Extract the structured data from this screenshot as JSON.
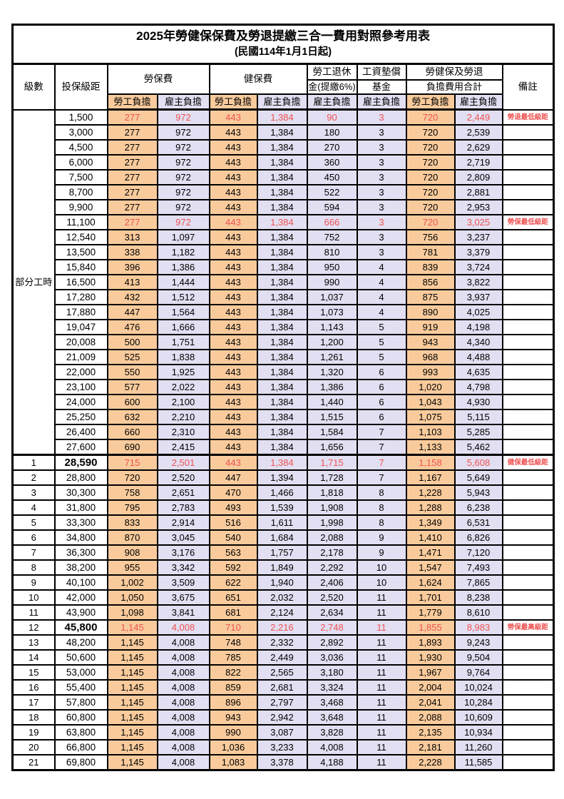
{
  "title": "2025年勞健保保費及勞退提繳三合一費用對照參考用表",
  "subtitle": "(民國114年1月1日起)",
  "header": {
    "level": "級數",
    "bracket": "投保級距",
    "labor": "勞保費",
    "health": "健保費",
    "pension_l1": "勞工退休",
    "pension_l2": "金(提繳6%)",
    "wage_l1": "工資墊償",
    "wage_l2": "基金",
    "total_l1": "勞健保及勞退",
    "total_l2": "負擔費用合計",
    "remark": "備註",
    "employee": "勞工負擔",
    "employer": "雇主負擔"
  },
  "part_time": {
    "label": "部分工時",
    "rowspan": 23
  },
  "colors": {
    "employee_bg": "#F9CB9C",
    "employer_bg": "#E2DFF2",
    "highlight_red": "#EE5353",
    "border": "#000000"
  },
  "rows": [
    {
      "level": "",
      "bracket": "1,500",
      "fees": [
        "277",
        "972",
        "443",
        "1,384",
        "90",
        "3",
        "720",
        "2,449"
      ],
      "remark": "勞退最低級距",
      "highlight": true
    },
    {
      "level": "",
      "bracket": "3,000",
      "fees": [
        "277",
        "972",
        "443",
        "1,384",
        "180",
        "3",
        "720",
        "2,539"
      ]
    },
    {
      "level": "",
      "bracket": "4,500",
      "fees": [
        "277",
        "972",
        "443",
        "1,384",
        "270",
        "3",
        "720",
        "2,629"
      ]
    },
    {
      "level": "",
      "bracket": "6,000",
      "fees": [
        "277",
        "972",
        "443",
        "1,384",
        "360",
        "3",
        "720",
        "2,719"
      ]
    },
    {
      "level": "",
      "bracket": "7,500",
      "fees": [
        "277",
        "972",
        "443",
        "1,384",
        "450",
        "3",
        "720",
        "2,809"
      ]
    },
    {
      "level": "",
      "bracket": "8,700",
      "fees": [
        "277",
        "972",
        "443",
        "1,384",
        "522",
        "3",
        "720",
        "2,881"
      ]
    },
    {
      "level": "",
      "bracket": "9,900",
      "fees": [
        "277",
        "972",
        "443",
        "1,384",
        "594",
        "3",
        "720",
        "2,953"
      ]
    },
    {
      "level": "",
      "bracket": "11,100",
      "fees": [
        "277",
        "972",
        "443",
        "1,384",
        "666",
        "3",
        "720",
        "3,025"
      ],
      "remark": "勞保最低級距",
      "highlight": true
    },
    {
      "level": "",
      "bracket": "12,540",
      "fees": [
        "313",
        "1,097",
        "443",
        "1,384",
        "752",
        "3",
        "756",
        "3,237"
      ]
    },
    {
      "level": "",
      "bracket": "13,500",
      "fees": [
        "338",
        "1,182",
        "443",
        "1,384",
        "810",
        "3",
        "781",
        "3,379"
      ]
    },
    {
      "level": "",
      "bracket": "15,840",
      "fees": [
        "396",
        "1,386",
        "443",
        "1,384",
        "950",
        "4",
        "839",
        "3,724"
      ]
    },
    {
      "level": "",
      "bracket": "16,500",
      "fees": [
        "413",
        "1,444",
        "443",
        "1,384",
        "990",
        "4",
        "856",
        "3,822"
      ]
    },
    {
      "level": "",
      "bracket": "17,280",
      "fees": [
        "432",
        "1,512",
        "443",
        "1,384",
        "1,037",
        "4",
        "875",
        "3,937"
      ]
    },
    {
      "level": "",
      "bracket": "17,880",
      "fees": [
        "447",
        "1,564",
        "443",
        "1,384",
        "1,073",
        "4",
        "890",
        "4,025"
      ]
    },
    {
      "level": "",
      "bracket": "19,047",
      "fees": [
        "476",
        "1,666",
        "443",
        "1,384",
        "1,143",
        "5",
        "919",
        "4,198"
      ]
    },
    {
      "level": "",
      "bracket": "20,008",
      "fees": [
        "500",
        "1,751",
        "443",
        "1,384",
        "1,200",
        "5",
        "943",
        "4,340"
      ]
    },
    {
      "level": "",
      "bracket": "21,009",
      "fees": [
        "525",
        "1,838",
        "443",
        "1,384",
        "1,261",
        "5",
        "968",
        "4,488"
      ]
    },
    {
      "level": "",
      "bracket": "22,000",
      "fees": [
        "550",
        "1,925",
        "443",
        "1,384",
        "1,320",
        "6",
        "993",
        "4,635"
      ]
    },
    {
      "level": "",
      "bracket": "23,100",
      "fees": [
        "577",
        "2,022",
        "443",
        "1,384",
        "1,386",
        "6",
        "1,020",
        "4,798"
      ]
    },
    {
      "level": "",
      "bracket": "24,000",
      "fees": [
        "600",
        "2,100",
        "443",
        "1,384",
        "1,440",
        "6",
        "1,043",
        "4,930"
      ]
    },
    {
      "level": "",
      "bracket": "25,250",
      "fees": [
        "632",
        "2,210",
        "443",
        "1,384",
        "1,515",
        "6",
        "1,075",
        "5,115"
      ]
    },
    {
      "level": "",
      "bracket": "26,400",
      "fees": [
        "660",
        "2,310",
        "443",
        "1,384",
        "1,584",
        "7",
        "1,103",
        "5,285"
      ]
    },
    {
      "level": "",
      "bracket": "27,600",
      "fees": [
        "690",
        "2,415",
        "443",
        "1,384",
        "1,656",
        "7",
        "1,133",
        "5,462"
      ]
    },
    {
      "level": "1",
      "bracket": "28,590",
      "fees": [
        "715",
        "2,501",
        "443",
        "1,384",
        "1,715",
        "7",
        "1,158",
        "5,608"
      ],
      "remark": "健保最低級距",
      "highlight": true,
      "bold_bracket": true,
      "thick_top": true
    },
    {
      "level": "2",
      "bracket": "28,800",
      "fees": [
        "720",
        "2,520",
        "447",
        "1,394",
        "1,728",
        "7",
        "1,167",
        "5,649"
      ]
    },
    {
      "level": "3",
      "bracket": "30,300",
      "fees": [
        "758",
        "2,651",
        "470",
        "1,466",
        "1,818",
        "8",
        "1,228",
        "5,943"
      ]
    },
    {
      "level": "4",
      "bracket": "31,800",
      "fees": [
        "795",
        "2,783",
        "493",
        "1,539",
        "1,908",
        "8",
        "1,288",
        "6,238"
      ]
    },
    {
      "level": "5",
      "bracket": "33,300",
      "fees": [
        "833",
        "2,914",
        "516",
        "1,611",
        "1,998",
        "8",
        "1,349",
        "6,531"
      ]
    },
    {
      "level": "6",
      "bracket": "34,800",
      "fees": [
        "870",
        "3,045",
        "540",
        "1,684",
        "2,088",
        "9",
        "1,410",
        "6,826"
      ]
    },
    {
      "level": "7",
      "bracket": "36,300",
      "fees": [
        "908",
        "3,176",
        "563",
        "1,757",
        "2,178",
        "9",
        "1,471",
        "7,120"
      ]
    },
    {
      "level": "8",
      "bracket": "38,200",
      "fees": [
        "955",
        "3,342",
        "592",
        "1,849",
        "2,292",
        "10",
        "1,547",
        "7,493"
      ]
    },
    {
      "level": "9",
      "bracket": "40,100",
      "fees": [
        "1,002",
        "3,509",
        "622",
        "1,940",
        "2,406",
        "10",
        "1,624",
        "7,865"
      ]
    },
    {
      "level": "10",
      "bracket": "42,000",
      "fees": [
        "1,050",
        "3,675",
        "651",
        "2,032",
        "2,520",
        "11",
        "1,701",
        "8,238"
      ]
    },
    {
      "level": "11",
      "bracket": "43,900",
      "fees": [
        "1,098",
        "3,841",
        "681",
        "2,124",
        "2,634",
        "11",
        "1,779",
        "8,610"
      ]
    },
    {
      "level": "12",
      "bracket": "45,800",
      "fees": [
        "1,145",
        "4,008",
        "710",
        "2,216",
        "2,748",
        "11",
        "1,855",
        "8,983"
      ],
      "remark": "勞保最高級距",
      "highlight": true,
      "bold_bracket": true
    },
    {
      "level": "13",
      "bracket": "48,200",
      "fees": [
        "1,145",
        "4,008",
        "748",
        "2,332",
        "2,892",
        "11",
        "1,893",
        "9,243"
      ]
    },
    {
      "level": "14",
      "bracket": "50,600",
      "fees": [
        "1,145",
        "4,008",
        "785",
        "2,449",
        "3,036",
        "11",
        "1,930",
        "9,504"
      ]
    },
    {
      "level": "15",
      "bracket": "53,000",
      "fees": [
        "1,145",
        "4,008",
        "822",
        "2,565",
        "3,180",
        "11",
        "1,967",
        "9,764"
      ]
    },
    {
      "level": "16",
      "bracket": "55,400",
      "fees": [
        "1,145",
        "4,008",
        "859",
        "2,681",
        "3,324",
        "11",
        "2,004",
        "10,024"
      ]
    },
    {
      "level": "17",
      "bracket": "57,800",
      "fees": [
        "1,145",
        "4,008",
        "896",
        "2,797",
        "3,468",
        "11",
        "2,041",
        "10,284"
      ]
    },
    {
      "level": "18",
      "bracket": "60,800",
      "fees": [
        "1,145",
        "4,008",
        "943",
        "2,942",
        "3,648",
        "11",
        "2,088",
        "10,609"
      ]
    },
    {
      "level": "19",
      "bracket": "63,800",
      "fees": [
        "1,145",
        "4,008",
        "990",
        "3,087",
        "3,828",
        "11",
        "2,135",
        "10,934"
      ]
    },
    {
      "level": "20",
      "bracket": "66,800",
      "fees": [
        "1,145",
        "4,008",
        "1,036",
        "3,233",
        "4,008",
        "11",
        "2,181",
        "11,260"
      ]
    },
    {
      "level": "21",
      "bracket": "69,800",
      "fees": [
        "1,145",
        "4,008",
        "1,083",
        "3,378",
        "4,188",
        "11",
        "2,228",
        "11,585"
      ]
    }
  ]
}
